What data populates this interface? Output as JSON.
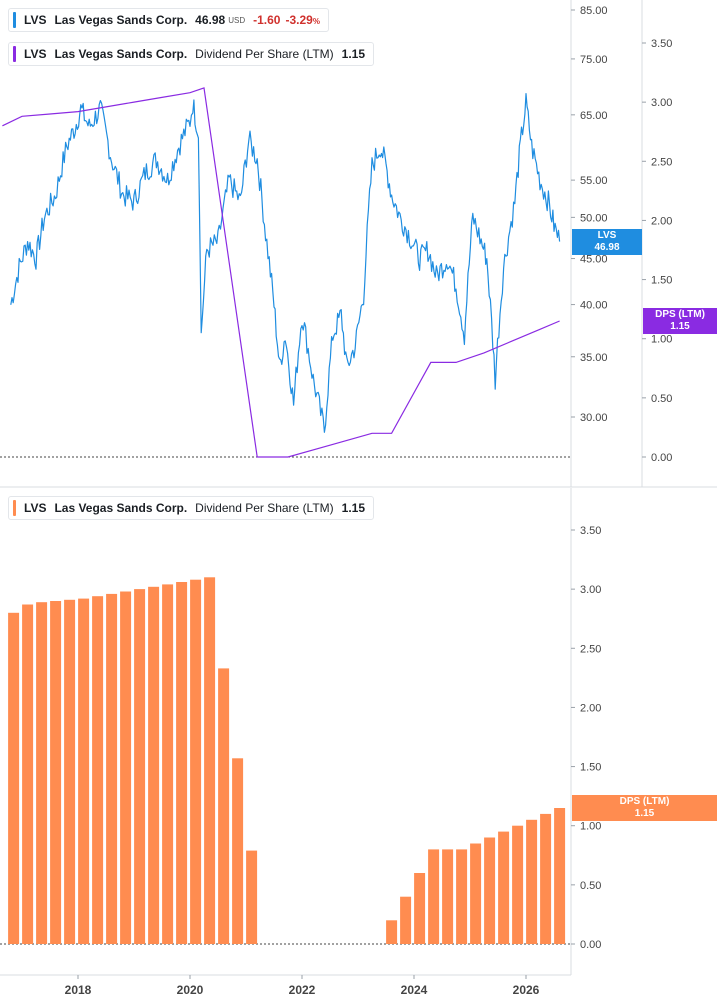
{
  "colors": {
    "price_line": "#1f8de0",
    "dps_line": "#8a2be2",
    "dps_bar": "#ff8c50",
    "tag_price": "#1f8de0",
    "tag_dps": "#8a2be2",
    "tag_dps_bar": "#ff8c50",
    "negative": "#d0312d"
  },
  "legends": {
    "price": {
      "ticker": "LVS",
      "name": "Las Vegas Sands Corp.",
      "price": "46.98",
      "currency": "USD",
      "change": "-1.60",
      "change_pct": "-3.29",
      "pct_sign": "%"
    },
    "dps_top": {
      "ticker": "LVS",
      "name": "Las Vegas Sands Corp.",
      "metric": "Dividend Per Share (LTM)",
      "value": "1.15"
    },
    "dps_bottom": {
      "ticker": "LVS",
      "name": "Las Vegas Sands Corp.",
      "metric": "Dividend Per Share (LTM)",
      "value": "1.15"
    }
  },
  "tags": {
    "price": {
      "label": "LVS",
      "value": "46.98"
    },
    "dps_top": {
      "label": "DPS (LTM)",
      "value": "1.15"
    },
    "dps_bottom": {
      "label": "DPS (LTM)",
      "value": "1.15"
    }
  },
  "chart_data": [
    {
      "type": "line",
      "panel": "top",
      "y_scale": "log",
      "price_axis_ticks": [
        85,
        75,
        65,
        55,
        50,
        45,
        40,
        35,
        30
      ],
      "dps_axis_ticks": [
        3.5,
        3.0,
        2.5,
        2.0,
        1.5,
        1.0,
        0.5,
        0.0
      ],
      "x_ticks": [
        "2018",
        "2020",
        "2022",
        "2024",
        "2026"
      ],
      "x_tick_values": [
        2018,
        2020,
        2022,
        2024,
        2026
      ],
      "series": [
        {
          "name": "LVS",
          "axis": "price",
          "x": [
            2016.8,
            2016.95,
            2017.1,
            2017.25,
            2017.4,
            2017.6,
            2017.8,
            2017.95,
            2018.05,
            2018.2,
            2018.4,
            2018.6,
            2018.8,
            2019.0,
            2019.2,
            2019.4,
            2019.6,
            2019.8,
            2020.0,
            2020.05,
            2020.15,
            2020.2,
            2020.3,
            2020.5,
            2020.7,
            2020.9,
            2021.05,
            2021.2,
            2021.35,
            2021.5,
            2021.6,
            2021.7,
            2021.85,
            2022.0,
            2022.2,
            2022.4,
            2022.55,
            2022.7,
            2022.8,
            2022.95,
            2023.1,
            2023.25,
            2023.4,
            2023.5,
            2023.6,
            2023.75,
            2023.9,
            2024.1,
            2024.25,
            2024.4,
            2024.6,
            2024.75,
            2024.9,
            2025.05,
            2025.2,
            2025.3,
            2025.45,
            2025.6,
            2025.8,
            2025.9,
            2026.0,
            2026.1,
            2026.25,
            2026.4,
            2026.5,
            2026.6
          ],
          "values": [
            40,
            44,
            47,
            45,
            50,
            53,
            60,
            63,
            66,
            63,
            66,
            58,
            53,
            52,
            56,
            58,
            55,
            60,
            64,
            67,
            62,
            37,
            46,
            47,
            55,
            52,
            61,
            58,
            48,
            40,
            34,
            37,
            31,
            39,
            33,
            29,
            37,
            39,
            34,
            36,
            41,
            57,
            60,
            57,
            53,
            50,
            48,
            45,
            46,
            43,
            45,
            42,
            37,
            50,
            47,
            45,
            33,
            44,
            52,
            60,
            67,
            60,
            55,
            52,
            49,
            47
          ]
        },
        {
          "name": "Dividend Per Share (LTM)",
          "axis": "dps",
          "x": [
            2016.65,
            2017.0,
            2017.5,
            2018.0,
            2018.5,
            2019.0,
            2019.5,
            2020.0,
            2020.25,
            2021.2,
            2021.75,
            2022.5,
            2023.25,
            2023.6,
            2024.3,
            2024.75,
            2025.25,
            2025.75,
            2026.25,
            2026.6
          ],
          "values": [
            2.8,
            2.88,
            2.9,
            2.92,
            2.96,
            3.0,
            3.04,
            3.08,
            3.12,
            0.0,
            0.0,
            0.1,
            0.2,
            0.2,
            0.8,
            0.8,
            0.88,
            0.98,
            1.08,
            1.15
          ]
        }
      ]
    },
    {
      "type": "bar",
      "panel": "bottom",
      "y_ticks": [
        3.5,
        3.0,
        2.5,
        2.0,
        1.5,
        1.0,
        0.5,
        0.0
      ],
      "x_ticks": [
        "2018",
        "2020",
        "2022",
        "2024",
        "2026"
      ],
      "x_tick_values": [
        2018,
        2020,
        2022,
        2024,
        2026
      ],
      "series": [
        {
          "name": "Dividend Per Share (LTM)",
          "x": [
            2016.85,
            2017.1,
            2017.35,
            2017.6,
            2017.85,
            2018.1,
            2018.35,
            2018.6,
            2018.85,
            2019.1,
            2019.35,
            2019.6,
            2019.85,
            2020.1,
            2020.35,
            2020.6,
            2020.85,
            2021.1,
            2021.35,
            2021.6,
            2021.85,
            2022.1,
            2022.35,
            2022.6,
            2022.85,
            2023.1,
            2023.35,
            2023.6,
            2023.85,
            2024.1,
            2024.35,
            2024.6,
            2024.85,
            2025.1,
            2025.35,
            2025.6,
            2025.85,
            2026.1,
            2026.35,
            2026.6
          ],
          "values": [
            2.8,
            2.87,
            2.89,
            2.9,
            2.91,
            2.92,
            2.94,
            2.96,
            2.98,
            3.0,
            3.02,
            3.04,
            3.06,
            3.08,
            3.1,
            2.33,
            1.57,
            0.79,
            0,
            0,
            0,
            0,
            0,
            0,
            0,
            0,
            0,
            0.2,
            0.4,
            0.6,
            0.8,
            0.8,
            0.8,
            0.85,
            0.9,
            0.95,
            1.0,
            1.05,
            1.1,
            1.15
          ]
        }
      ]
    }
  ]
}
